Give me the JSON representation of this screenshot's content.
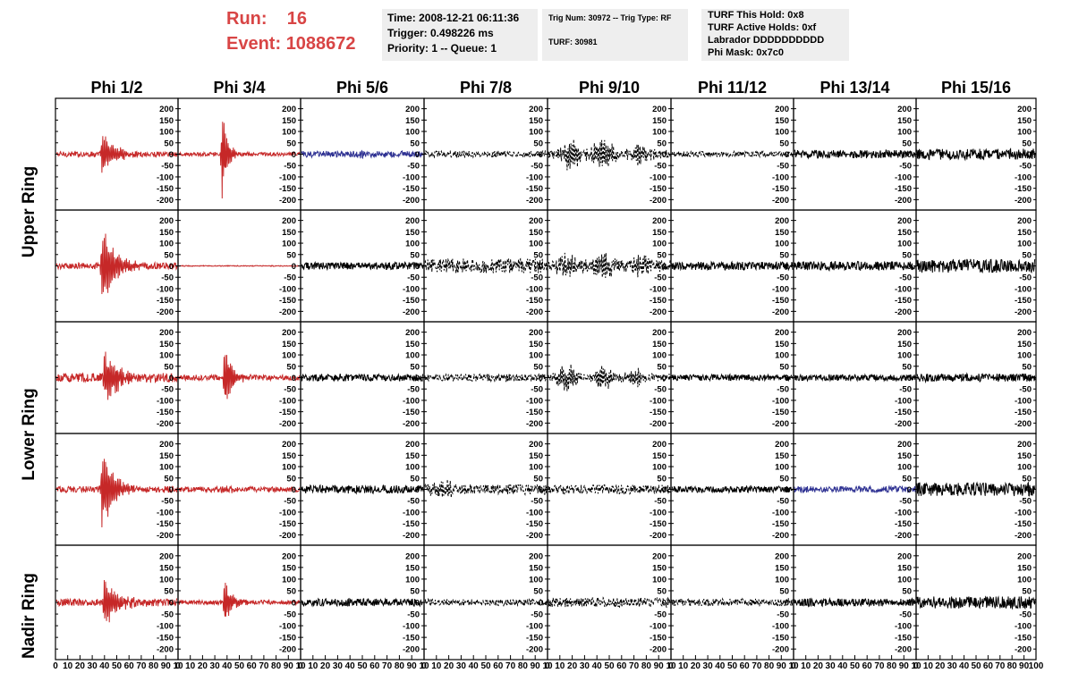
{
  "header": {
    "run_label": "Run:",
    "run_value": "16",
    "event_label": "Event:",
    "event_value": "1088672",
    "time_line": "Time: 2008-12-21 06:11:36",
    "trigger_line": "Trigger: 0.498226 ms",
    "priority_line": "Priority: 1 -- Queue: 1",
    "trig_num_line": "Trig Num: 30972 -- Trig Type: RF",
    "turf_line": "TURF: 30981",
    "turf_hold_line": "TURF This Hold: 0x8",
    "turf_active_line": "TURF Active Holds: 0xf",
    "labrador_line": "Labrador DDDDDDDDDD",
    "phi_mask_line": "Phi Mask: 0x7c0"
  },
  "columns": [
    "Phi 1/2",
    "Phi 3/4",
    "Phi 5/6",
    "Phi 7/8",
    "Phi 9/10",
    "Phi 11/12",
    "Phi 13/14",
    "Phi 15/16"
  ],
  "rows": [
    "Upper Ring",
    "Lower Ring",
    "Nadir Ring"
  ],
  "colors": {
    "red": "#c62828",
    "blue": "#2e3192",
    "black": "#000000",
    "header_red": "#d84545",
    "panel_bg": "#eeeeee"
  },
  "chart_data": {
    "type": "line",
    "ylim": [
      -230,
      230
    ],
    "xlim": [
      0,
      100
    ],
    "y_ticks": [
      -200,
      -150,
      -100,
      -50,
      0,
      50,
      100,
      150,
      200
    ],
    "x_tick_labels": [
      "0",
      "10",
      "20",
      "30",
      "40",
      "50",
      "60",
      "70",
      "80",
      "90",
      "100"
    ],
    "x_axis_labels": [
      [
        "0",
        "10",
        "20",
        "30",
        "40",
        "50",
        "60",
        "70",
        "80",
        "90",
        "10"
      ],
      [
        "0",
        "10",
        "20",
        "30",
        "40",
        "50",
        "60",
        "70",
        "80",
        "90",
        "10"
      ],
      [
        "0",
        "10",
        "20",
        "30",
        "40",
        "50",
        "60",
        "70",
        "80",
        "90",
        "10"
      ],
      [
        "0",
        "10",
        "20",
        "30",
        "40",
        "50",
        "60",
        "70",
        "80",
        "90",
        "10"
      ],
      [
        "0",
        "10",
        "20",
        "30",
        "40",
        "50",
        "60",
        "70",
        "80",
        "90",
        "10"
      ],
      [
        "0",
        "10",
        "20",
        "30",
        "40",
        "50",
        "60",
        "70",
        "80",
        "90",
        "10"
      ],
      [
        "0",
        "10",
        "20",
        "30",
        "40",
        "50",
        "60",
        "70",
        "80",
        "90",
        "10"
      ],
      [
        "0",
        "10",
        "20",
        "30",
        "40",
        "50",
        "60",
        "70",
        "80",
        "90",
        "100"
      ]
    ],
    "waveforms": [
      [
        {
          "color": "red",
          "style": "solid",
          "noise": 12,
          "pulse": {
            "center": 38,
            "width": 10,
            "amp": 95,
            "freq": 1.6
          }
        },
        {
          "color": "red",
          "style": "solid",
          "noise": 8,
          "pulse": {
            "center": 36,
            "width": 4,
            "amp": 225,
            "freq": 1.8
          }
        },
        {
          "color": "blue",
          "style": "solid",
          "noise": 14,
          "pulse": {
            "center": 48,
            "width": 8,
            "amp": 22,
            "freq": 1.4
          }
        },
        {
          "color": "black",
          "style": "dashed",
          "noise": 14,
          "pulse": null
        },
        {
          "color": "black",
          "style": "dashed",
          "noise": 20,
          "bursts": [
            {
              "center": 18,
              "width": 8,
              "amp": 65
            },
            {
              "center": 45,
              "width": 9,
              "amp": 70
            },
            {
              "center": 75,
              "width": 9,
              "amp": 45
            }
          ]
        },
        {
          "color": "black",
          "style": "dashed",
          "noise": 12,
          "pulse": null
        },
        {
          "color": "black",
          "style": "solid",
          "noise": 18,
          "pulse": null
        },
        {
          "color": "black",
          "style": "solid",
          "noise": 24,
          "pulse": null
        }
      ],
      [
        {
          "color": "red",
          "style": "solid",
          "noise": 14,
          "pulse": {
            "center": 38,
            "width": 10,
            "amp": 190,
            "freq": 1.6
          }
        },
        {
          "color": "red",
          "style": "solid",
          "noise": 2,
          "pulse": null
        },
        {
          "color": "black",
          "style": "solid",
          "noise": 16,
          "pulse": null
        },
        {
          "color": "black",
          "style": "dashed",
          "noise": 32,
          "pulse": null
        },
        {
          "color": "black",
          "style": "dashed",
          "noise": 28,
          "bursts": [
            {
              "center": 15,
              "width": 8,
              "amp": 45
            },
            {
              "center": 45,
              "width": 8,
              "amp": 55
            },
            {
              "center": 75,
              "width": 8,
              "amp": 50
            }
          ]
        },
        {
          "color": "black",
          "style": "solid",
          "noise": 18,
          "pulse": null
        },
        {
          "color": "black",
          "style": "solid",
          "noise": 20,
          "pulse": null
        },
        {
          "color": "black",
          "style": "solid",
          "noise": 30,
          "pulse": null
        }
      ],
      [
        {
          "color": "red",
          "style": "solid",
          "noise": 20,
          "pulse": {
            "center": 40,
            "width": 12,
            "amp": 130,
            "freq": 1.6
          }
        },
        {
          "color": "red",
          "style": "solid",
          "noise": 12,
          "pulse": {
            "center": 38,
            "width": 6,
            "amp": 150,
            "freq": 1.8
          }
        },
        {
          "color": "black",
          "style": "solid",
          "noise": 16,
          "pulse": null
        },
        {
          "color": "black",
          "style": "dashed",
          "noise": 16,
          "pulse": null
        },
        {
          "color": "black",
          "style": "dashed",
          "noise": 18,
          "bursts": [
            {
              "center": 15,
              "width": 8,
              "amp": 55
            },
            {
              "center": 45,
              "width": 8,
              "amp": 45
            },
            {
              "center": 72,
              "width": 8,
              "amp": 40
            }
          ]
        },
        {
          "color": "black",
          "style": "solid",
          "noise": 14,
          "pulse": null
        },
        {
          "color": "black",
          "style": "solid",
          "noise": 14,
          "pulse": null
        },
        {
          "color": "black",
          "style": "solid",
          "noise": 18,
          "pulse": null
        }
      ],
      [
        {
          "color": "red",
          "style": "solid",
          "noise": 14,
          "pulse": {
            "center": 38,
            "width": 10,
            "amp": 180,
            "freq": 1.6
          }
        },
        {
          "color": "red",
          "style": "solid",
          "noise": 12,
          "pulse": {
            "center": 36,
            "width": 6,
            "amp": 25,
            "freq": 1.6
          }
        },
        {
          "color": "black",
          "style": "solid",
          "noise": 18,
          "pulse": null
        },
        {
          "color": "black",
          "style": "dashed",
          "noise": 22,
          "bursts": [
            {
              "center": 15,
              "width": 8,
              "amp": 40
            }
          ]
        },
        {
          "color": "black",
          "style": "dashed",
          "noise": 20,
          "pulse": null
        },
        {
          "color": "black",
          "style": "solid",
          "noise": 14,
          "pulse": null
        },
        {
          "color": "blue",
          "style": "solid",
          "noise": 14,
          "pulse": null
        },
        {
          "color": "black",
          "style": "solid",
          "noise": 30,
          "pulse": null
        }
      ],
      [
        {
          "color": "red",
          "style": "solid",
          "noise": 16,
          "pulse": {
            "center": 40,
            "width": 10,
            "amp": 120,
            "freq": 1.6
          }
        },
        {
          "color": "red",
          "style": "solid",
          "noise": 10,
          "pulse": {
            "center": 38,
            "width": 5,
            "amp": 110,
            "freq": 1.8
          }
        },
        {
          "color": "black",
          "style": "solid",
          "noise": 16,
          "pulse": null
        },
        {
          "color": "black",
          "style": "dashed",
          "noise": 14,
          "pulse": null
        },
        {
          "color": "black",
          "style": "dashed",
          "noise": 20,
          "pulse": null
        },
        {
          "color": "black",
          "style": "dashed",
          "noise": 16,
          "pulse": null
        },
        {
          "color": "black",
          "style": "solid",
          "noise": 16,
          "pulse": null
        },
        {
          "color": "black",
          "style": "solid",
          "noise": 26,
          "pulse": null
        }
      ]
    ]
  }
}
